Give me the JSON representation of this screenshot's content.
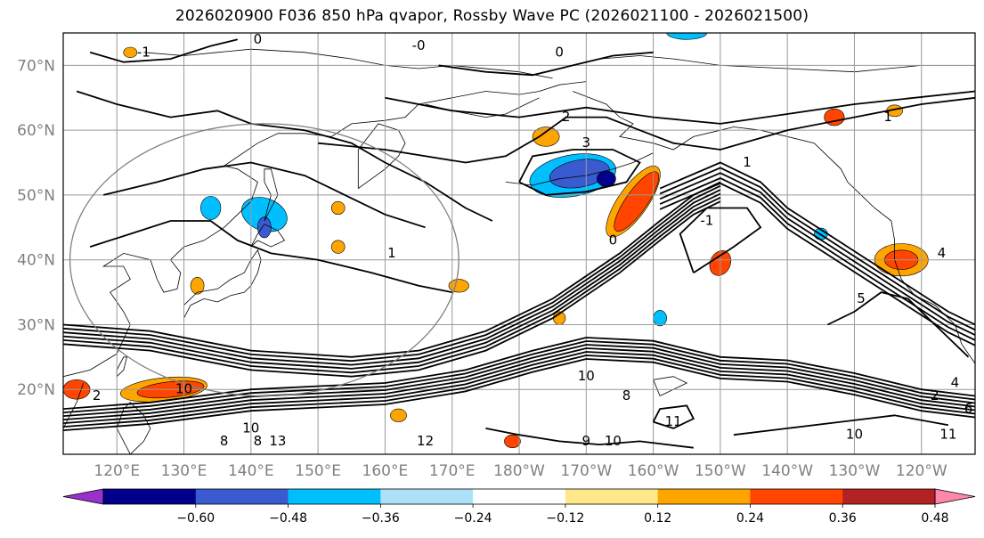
{
  "title": "2026020900 F036 850 hPa qvapor, Rossby Wave PC (2026021100 - 2026021500)",
  "map": {
    "lon_range": [
      112,
      248
    ],
    "lat_range": [
      10,
      75
    ],
    "lat_labels": [
      {
        "lat": 70,
        "text": "70°N"
      },
      {
        "lat": 60,
        "text": "60°N"
      },
      {
        "lat": 50,
        "text": "50°N"
      },
      {
        "lat": 40,
        "text": "40°N"
      },
      {
        "lat": 30,
        "text": "30°N"
      },
      {
        "lat": 20,
        "text": "20°N"
      }
    ],
    "lon_labels": [
      {
        "lon": 120,
        "text": "120°E"
      },
      {
        "lon": 130,
        "text": "130°E"
      },
      {
        "lon": 140,
        "text": "140°E"
      },
      {
        "lon": 150,
        "text": "150°E"
      },
      {
        "lon": 160,
        "text": "160°E"
      },
      {
        "lon": 170,
        "text": "170°E"
      },
      {
        "lon": 180,
        "text": "180°W"
      },
      {
        "lon": 190,
        "text": "170°W"
      },
      {
        "lon": 200,
        "text": "160°W"
      },
      {
        "lon": 210,
        "text": "150°W"
      },
      {
        "lon": 220,
        "text": "140°W"
      },
      {
        "lon": 230,
        "text": "130°W"
      },
      {
        "lon": 240,
        "text": "120°W"
      }
    ],
    "contour_labels": [
      {
        "lon": 124,
        "lat": 72,
        "text": "-1"
      },
      {
        "lon": 141,
        "lat": 74,
        "text": "0"
      },
      {
        "lon": 165,
        "lat": 73,
        "text": "-0"
      },
      {
        "lon": 186,
        "lat": 72,
        "text": "0"
      },
      {
        "lon": 187,
        "lat": 62,
        "text": "2"
      },
      {
        "lon": 190,
        "lat": 58,
        "text": "3"
      },
      {
        "lon": 208,
        "lat": 46,
        "text": "-1"
      },
      {
        "lon": 214,
        "lat": 55,
        "text": "1"
      },
      {
        "lon": 161,
        "lat": 41,
        "text": "1"
      },
      {
        "lon": 235,
        "lat": 62,
        "text": "1"
      },
      {
        "lon": 194,
        "lat": 43,
        "text": "0"
      },
      {
        "lon": 190,
        "lat": 22,
        "text": "10"
      },
      {
        "lon": 196,
        "lat": 19,
        "text": "8"
      },
      {
        "lon": 203,
        "lat": 15,
        "text": "11"
      },
      {
        "lon": 130,
        "lat": 20,
        "text": "10"
      },
      {
        "lon": 140,
        "lat": 14,
        "text": "10"
      },
      {
        "lon": 141,
        "lat": 12,
        "text": "8"
      },
      {
        "lon": 144,
        "lat": 12,
        "text": "13"
      },
      {
        "lon": 166,
        "lat": 12,
        "text": "12"
      },
      {
        "lon": 190,
        "lat": 12,
        "text": "9"
      },
      {
        "lon": 194,
        "lat": 12,
        "text": "10"
      },
      {
        "lon": 230,
        "lat": 13,
        "text": "10"
      },
      {
        "lon": 244,
        "lat": 13,
        "text": "11"
      },
      {
        "lon": 247,
        "lat": 17,
        "text": "6"
      },
      {
        "lon": 242,
        "lat": 19,
        "text": "2"
      },
      {
        "lon": 245,
        "lat": 21,
        "text": "4"
      },
      {
        "lon": 243,
        "lat": 41,
        "text": "4"
      },
      {
        "lon": 231,
        "lat": 34,
        "text": "5"
      },
      {
        "lon": 136,
        "lat": 12,
        "text": "8"
      },
      {
        "lon": 117,
        "lat": 19,
        "text": "2"
      }
    ]
  },
  "colorbar": {
    "levels": [
      -0.6,
      -0.48,
      -0.36,
      -0.24,
      -0.12,
      0.12,
      0.24,
      0.36,
      0.48,
      0.6
    ],
    "labels": [
      "−0.60",
      "−0.48",
      "−0.36",
      "−0.24",
      "−0.12",
      "0.12",
      "0.24",
      "0.36",
      "0.48",
      "0.60"
    ],
    "colors": [
      "#9932CC",
      "#00008B",
      "#3A5BD0",
      "#00BFFF",
      "#ADE1FA",
      "#FFFFFF",
      "#FFE889",
      "#FFA500",
      "#FF4500",
      "#B22222",
      "#FF88AA"
    ]
  },
  "anomalies": [
    {
      "lon": 188,
      "lat": 53,
      "rx": 6.5,
      "ry": 3.2,
      "rot": -10,
      "color": "#00BFFF"
    },
    {
      "lon": 189,
      "lat": 53.3,
      "rx": 4.5,
      "ry": 2.1,
      "rot": -10,
      "color": "#3A5BD0"
    },
    {
      "lon": 193,
      "lat": 52.5,
      "rx": 1.4,
      "ry": 1.2,
      "rot": 0,
      "color": "#00008B"
    },
    {
      "lon": 197,
      "lat": 49,
      "rx": 2.2,
      "ry": 6.5,
      "rot": 35,
      "color": "#FFA500"
    },
    {
      "lon": 197.5,
      "lat": 49,
      "rx": 1.6,
      "ry": 5.5,
      "rot": 35,
      "color": "#FF4500"
    },
    {
      "lon": 184,
      "lat": 59,
      "rx": 2.0,
      "ry": 1.5,
      "rot": 0,
      "color": "#FFA500"
    },
    {
      "lon": 142,
      "lat": 47,
      "rx": 3.5,
      "ry": 2.5,
      "rot": 20,
      "color": "#00BFFF"
    },
    {
      "lon": 134,
      "lat": 48,
      "rx": 1.5,
      "ry": 1.8,
      "rot": 0,
      "color": "#00BFFF"
    },
    {
      "lon": 142,
      "lat": 45,
      "rx": 1.0,
      "ry": 1.6,
      "rot": 0,
      "color": "#3A5BD0"
    },
    {
      "lon": 127,
      "lat": 20,
      "rx": 6.5,
      "ry": 1.8,
      "rot": -6,
      "color": "#FFA500"
    },
    {
      "lon": 128,
      "lat": 20,
      "rx": 5.0,
      "ry": 1.2,
      "rot": -6,
      "color": "#FF4500"
    },
    {
      "lon": 114,
      "lat": 20,
      "rx": 2.0,
      "ry": 1.5,
      "rot": 0,
      "color": "#FF4500"
    },
    {
      "lon": 237,
      "lat": 40,
      "rx": 4.0,
      "ry": 2.5,
      "rot": 0,
      "color": "#FFA500"
    },
    {
      "lon": 237,
      "lat": 40,
      "rx": 2.5,
      "ry": 1.5,
      "rot": 0,
      "color": "#FF4500"
    },
    {
      "lon": 210,
      "lat": 39.5,
      "rx": 1.5,
      "ry": 2.0,
      "rot": 25,
      "color": "#FF4500"
    },
    {
      "lon": 227,
      "lat": 62,
      "rx": 1.5,
      "ry": 1.3,
      "rot": 0,
      "color": "#FF4500"
    },
    {
      "lon": 201,
      "lat": 31,
      "rx": 1.0,
      "ry": 1.2,
      "rot": 0,
      "color": "#00BFFF"
    },
    {
      "lon": 186,
      "lat": 31,
      "rx": 0.9,
      "ry": 1.0,
      "rot": 0,
      "color": "#FFA500"
    },
    {
      "lon": 162,
      "lat": 16,
      "rx": 1.2,
      "ry": 1.0,
      "rot": 0,
      "color": "#FFA500"
    },
    {
      "lon": 179,
      "lat": 12,
      "rx": 1.2,
      "ry": 1.0,
      "rot": 0,
      "color": "#FF4500"
    },
    {
      "lon": 153,
      "lat": 48,
      "rx": 1.0,
      "ry": 1.0,
      "rot": 0,
      "color": "#FFA500"
    },
    {
      "lon": 132,
      "lat": 36,
      "rx": 1.0,
      "ry": 1.3,
      "rot": 0,
      "color": "#FFA500"
    },
    {
      "lon": 153,
      "lat": 42,
      "rx": 1.0,
      "ry": 1.0,
      "rot": 0,
      "color": "#FFA500"
    },
    {
      "lon": 122,
      "lat": 72,
      "rx": 1.0,
      "ry": 0.8,
      "rot": 0,
      "color": "#FFA500"
    },
    {
      "lon": 236,
      "lat": 63,
      "rx": 1.2,
      "ry": 0.9,
      "rot": 0,
      "color": "#FFA500"
    },
    {
      "lon": 225,
      "lat": 44,
      "rx": 1.0,
      "ry": 0.9,
      "rot": 0,
      "color": "#00BFFF"
    },
    {
      "lon": 205,
      "lat": 75,
      "rx": 3.0,
      "ry": 1.0,
      "rot": 0,
      "color": "#00BFFF"
    },
    {
      "lon": 171,
      "lat": 36,
      "rx": 1.5,
      "ry": 1.0,
      "rot": 0,
      "color": "#FFA500"
    }
  ],
  "grid": true,
  "circle": {
    "lon": 142,
    "lat": 40
  }
}
